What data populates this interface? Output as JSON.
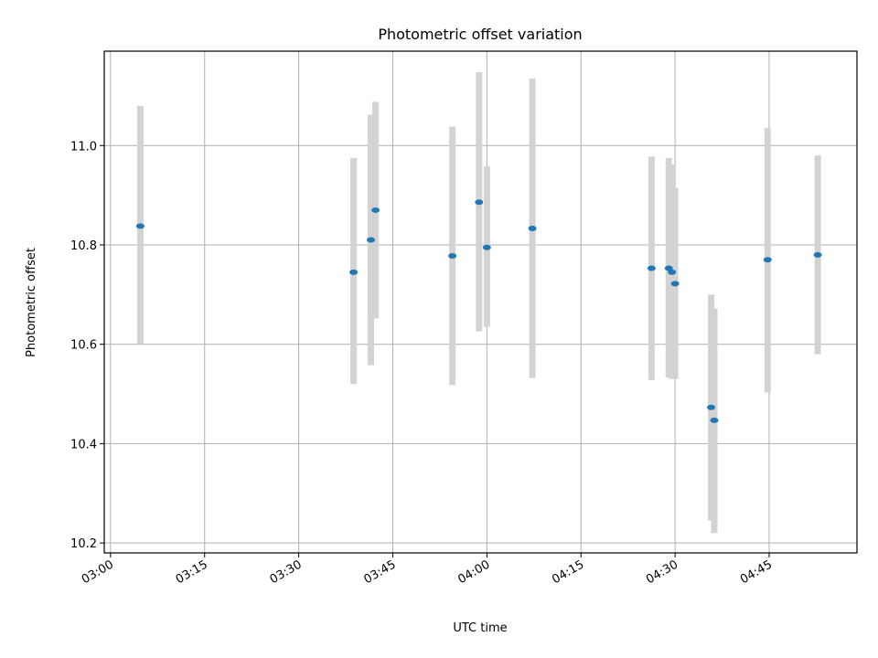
{
  "chart_data": {
    "type": "scatter",
    "title": "Photometric offset variation",
    "xlabel": "UTC time",
    "ylabel": "Photometric offset",
    "x_axis_kind": "time",
    "xlim": [
      "02:59",
      "04:59"
    ],
    "ylim": [
      10.18,
      11.19
    ],
    "xticks": [
      "03:00",
      "03:15",
      "03:30",
      "03:45",
      "04:00",
      "04:15",
      "04:30",
      "04:45"
    ],
    "yticks": [
      10.2,
      10.4,
      10.6,
      10.8,
      11.0
    ],
    "ytick_labels": [
      "10.2",
      "10.4",
      "10.6",
      "10.8",
      "11.0"
    ],
    "grid": true,
    "point_color": "#1f77b4",
    "errorbar_color": "#d3d3d3",
    "points": [
      {
        "x": "03:04:45",
        "y": 10.838,
        "ylow": 10.6,
        "yhigh": 11.08
      },
      {
        "x": "03:38:45",
        "y": 10.745,
        "ylow": 10.52,
        "yhigh": 10.975
      },
      {
        "x": "03:41:30",
        "y": 10.81,
        "ylow": 10.558,
        "yhigh": 11.062
      },
      {
        "x": "03:42:15",
        "y": 10.87,
        "ylow": 10.652,
        "yhigh": 11.088
      },
      {
        "x": "03:54:30",
        "y": 10.778,
        "ylow": 10.518,
        "yhigh": 11.038
      },
      {
        "x": "03:58:45",
        "y": 10.886,
        "ylow": 10.626,
        "yhigh": 11.148
      },
      {
        "x": "04:00:00",
        "y": 10.795,
        "ylow": 10.635,
        "yhigh": 10.958
      },
      {
        "x": "04:07:15",
        "y": 10.833,
        "ylow": 10.532,
        "yhigh": 11.135
      },
      {
        "x": "04:26:15",
        "y": 10.753,
        "ylow": 10.528,
        "yhigh": 10.978
      },
      {
        "x": "04:29:00",
        "y": 10.753,
        "ylow": 10.533,
        "yhigh": 10.975
      },
      {
        "x": "04:29:30",
        "y": 10.745,
        "ylow": 10.53,
        "yhigh": 10.962
      },
      {
        "x": "04:30:00",
        "y": 10.722,
        "ylow": 10.53,
        "yhigh": 10.915
      },
      {
        "x": "04:35:45",
        "y": 10.473,
        "ylow": 10.245,
        "yhigh": 10.7
      },
      {
        "x": "04:36:15",
        "y": 10.447,
        "ylow": 10.22,
        "yhigh": 10.672
      },
      {
        "x": "04:44:45",
        "y": 10.77,
        "ylow": 10.503,
        "yhigh": 11.035
      },
      {
        "x": "04:52:45",
        "y": 10.78,
        "ylow": 10.58,
        "yhigh": 10.98
      }
    ]
  }
}
